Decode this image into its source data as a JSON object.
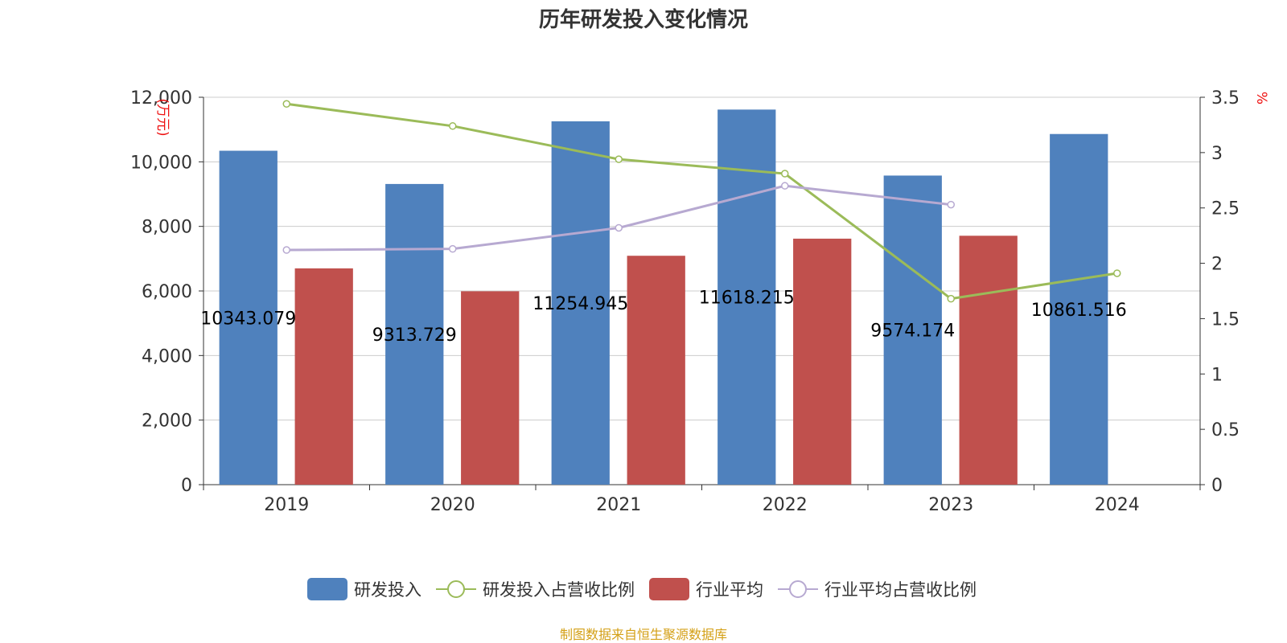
{
  "chart_data": {
    "type": "bar",
    "title": "历年研发投入变化情况",
    "categories": [
      "2019",
      "2020",
      "2021",
      "2022",
      "2023",
      "2024"
    ],
    "ylabel_left": "万元",
    "ylabel_right": "%",
    "ylim_left": [
      0,
      12000
    ],
    "ylim_right": [
      0,
      3.5
    ],
    "yticks_left": [
      "0",
      "2,000",
      "4,000",
      "6,000",
      "8,000",
      "10,000",
      "12,000"
    ],
    "yticks_right": [
      "0",
      "0.5",
      "1",
      "1.5",
      "2",
      "2.5",
      "3",
      "3.5"
    ],
    "yticks_left_values": [
      0,
      2000,
      4000,
      6000,
      8000,
      10000,
      12000
    ],
    "yticks_right_values": [
      0,
      0.5,
      1,
      1.5,
      2,
      2.5,
      3,
      3.5
    ],
    "series": [
      {
        "name": "研发投入",
        "kind": "bar",
        "axis": "left",
        "color": "#4f81bd",
        "values": [
          10343.079,
          9313.729,
          11254.945,
          11618.215,
          9574.174,
          10861.516
        ],
        "labels": [
          "10343.079",
          "9313.729",
          "11254.945",
          "11618.215",
          "9574.174",
          "10861.516"
        ]
      },
      {
        "name": "研发投入占营收比例",
        "kind": "line",
        "axis": "right",
        "color": "#9bbb59",
        "values": [
          3.44,
          3.24,
          2.94,
          2.81,
          1.68,
          1.91
        ]
      },
      {
        "name": "行业平均",
        "kind": "bar",
        "axis": "left",
        "color": "#c0504d",
        "values": [
          6700,
          5990,
          7090,
          7620,
          7710,
          null
        ]
      },
      {
        "name": "行业平均占营收比例",
        "kind": "line",
        "axis": "right",
        "color": "#b7a9d1",
        "values": [
          2.12,
          2.13,
          2.32,
          2.7,
          2.53,
          null
        ]
      }
    ],
    "grid": true,
    "legend_position": "bottom"
  },
  "legend": {
    "rd": "研发投入",
    "rd_ratio": "研发投入占营收比例",
    "ind": "行业平均",
    "ind_ratio": "行业平均占营收比例"
  },
  "source": "制图数据来自恒生聚源数据库"
}
